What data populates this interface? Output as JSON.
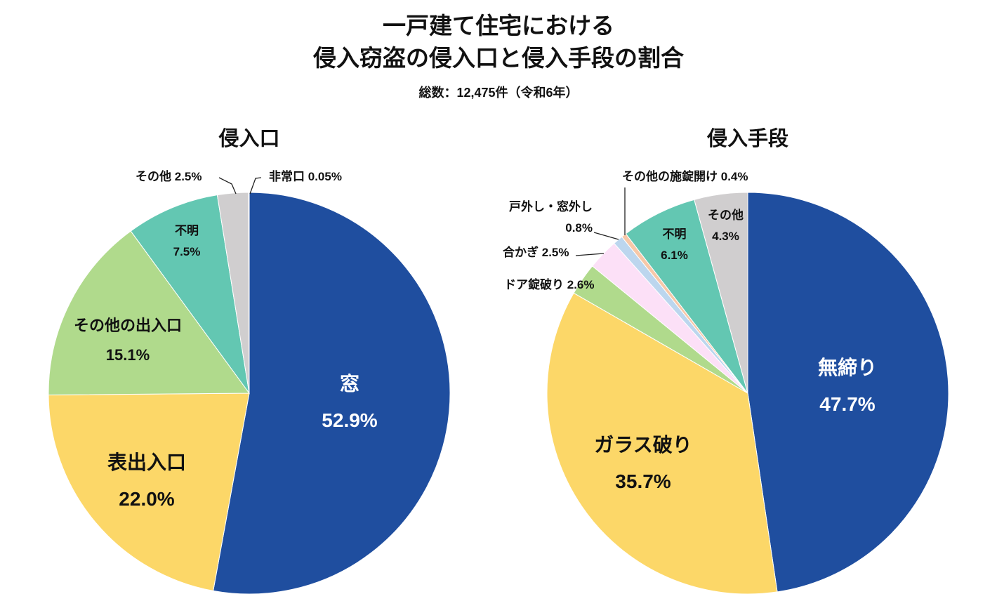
{
  "title_line1": "一戸建て住宅における",
  "title_line2": "侵入窃盗の侵入口と侵入手段の割合",
  "subtitle": "総数：12,475件（令和6年）",
  "chart_data": [
    {
      "type": "pie",
      "title": "侵入口",
      "start": "top",
      "direction": "clockwise",
      "slices": [
        {
          "label": "窓",
          "value": 52.9,
          "text": "52.9%",
          "color": "#1f4e9f"
        },
        {
          "label": "表出入口",
          "value": 22.0,
          "text": "22.0%",
          "color": "#fcd768"
        },
        {
          "label": "その他の出入口",
          "value": 15.1,
          "text": "15.1%",
          "color": "#b0da8c"
        },
        {
          "label": "不明",
          "value": 7.5,
          "text": "7.5%",
          "color": "#63c7b2"
        },
        {
          "label": "その他",
          "value": 2.5,
          "text": "2.5%",
          "color": "#d0cecf"
        },
        {
          "label": "非常口",
          "value": 0.05,
          "text": "0.05%",
          "color": "#e8a0d8"
        }
      ]
    },
    {
      "type": "pie",
      "title": "侵入手段",
      "start": "top",
      "direction": "clockwise",
      "slices": [
        {
          "label": "無締り",
          "value": 47.7,
          "text": "47.7%",
          "color": "#1f4e9f"
        },
        {
          "label": "ガラス破り",
          "value": 35.7,
          "text": "35.7%",
          "color": "#fcd768"
        },
        {
          "label": "ドア錠破り",
          "value": 2.6,
          "text": "2.6%",
          "color": "#b0da8c"
        },
        {
          "label": "合かぎ",
          "value": 2.5,
          "text": "2.5%",
          "color": "#fce0f7"
        },
        {
          "label": "戸外し・窓外し",
          "value": 0.8,
          "text": "0.8%",
          "color": "#bcd6ee"
        },
        {
          "label": "その他の施錠開け",
          "value": 0.4,
          "text": "0.4%",
          "color": "#f7c8a8"
        },
        {
          "label": "不明",
          "value": 6.1,
          "text": "6.1%",
          "color": "#63c7b2"
        },
        {
          "label": "その他",
          "value": 4.3,
          "text": "4.3%",
          "color": "#d0cecf"
        }
      ]
    }
  ]
}
